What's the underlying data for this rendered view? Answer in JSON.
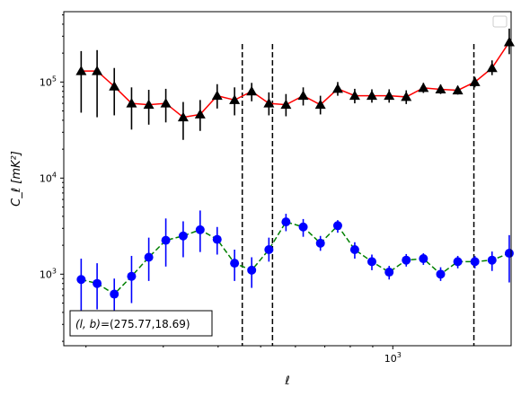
{
  "chart_data": {
    "type": "scatter",
    "xlabel": "ℓ",
    "ylabel": "C_ℓ [mK²]",
    "x_scale": "log",
    "y_scale": "log",
    "xlim": [
      178,
      1860
    ],
    "ylim": [
      180,
      540000
    ],
    "x_tick_labels": [
      {
        "value": 1000,
        "label": "10",
        "exp": "3"
      }
    ],
    "y_tick_labels": [
      {
        "value": 1000,
        "label": "10",
        "exp": "3"
      },
      {
        "value": 10000,
        "label": "10",
        "exp": "4"
      },
      {
        "value": 100000,
        "label": "10",
        "exp": "5"
      }
    ],
    "vlines": [
      454,
      532,
      1530
    ],
    "legend": {
      "placement": "top-right",
      "entries": []
    },
    "annotation": {
      "text_main": "(l, b)",
      "text_value": "=(275.77,18.69)",
      "placement": "bottom-left"
    },
    "series": [
      {
        "marker": "triangle",
        "color": "#000000",
        "line_color": "#ff0000",
        "line_style": "solid",
        "x": [
          195,
          212,
          232,
          254,
          278,
          304,
          333,
          364,
          398,
          436,
          477,
          522,
          571,
          625,
          684,
          749,
          819,
          896,
          981,
          1073,
          1174,
          1285,
          1406,
          1538,
          1683,
          1842
        ],
        "y": [
          130000,
          130000,
          90000,
          60000,
          58000,
          60000,
          43000,
          46000,
          72000,
          65000,
          80000,
          60000,
          58000,
          72000,
          58000,
          85000,
          72000,
          72000,
          72000,
          70000,
          87000,
          84000,
          82000,
          100000,
          140000,
          260000
        ],
        "y_low": [
          48000,
          43000,
          45000,
          32000,
          36000,
          38000,
          25000,
          31000,
          53000,
          45000,
          63000,
          45000,
          44000,
          57000,
          46000,
          72000,
          60000,
          61000,
          61000,
          59000,
          77000,
          75000,
          74000,
          88000,
          118000,
          195000
        ],
        "y_high": [
          210000,
          215000,
          140000,
          88000,
          83000,
          85000,
          62000,
          65000,
          95000,
          88000,
          98000,
          78000,
          75000,
          88000,
          72000,
          100000,
          85000,
          84000,
          84000,
          82000,
          98000,
          94000,
          91000,
          113000,
          168000,
          360000
        ]
      },
      {
        "marker": "circle",
        "color": "#0000ff",
        "line_color": "#008000",
        "line_style": "dashed",
        "x": [
          195,
          212,
          232,
          254,
          278,
          304,
          333,
          364,
          398,
          436,
          477,
          522,
          571,
          625,
          684,
          749,
          819,
          896,
          981,
          1073,
          1174,
          1285,
          1406,
          1538,
          1683,
          1842
        ],
        "y": [
          880,
          800,
          620,
          950,
          1500,
          2250,
          2500,
          2900,
          2300,
          1300,
          1100,
          1800,
          3500,
          3100,
          2100,
          3200,
          1800,
          1350,
          1050,
          1400,
          1450,
          1000,
          1350,
          1350,
          1400,
          1650
        ],
        "y_low": [
          380,
          430,
          380,
          500,
          850,
          1200,
          1500,
          1700,
          1600,
          850,
          720,
          1350,
          2800,
          2450,
          1750,
          2700,
          1450,
          1100,
          880,
          1200,
          1250,
          850,
          1150,
          1150,
          1080,
          820
        ],
        "y_high": [
          1450,
          1300,
          900,
          1550,
          2400,
          3800,
          3550,
          4600,
          3100,
          1800,
          1500,
          2400,
          4250,
          3750,
          2500,
          3650,
          2150,
          1600,
          1220,
          1620,
          1650,
          1180,
          1550,
          1550,
          1720,
          2550
        ]
      }
    ]
  }
}
